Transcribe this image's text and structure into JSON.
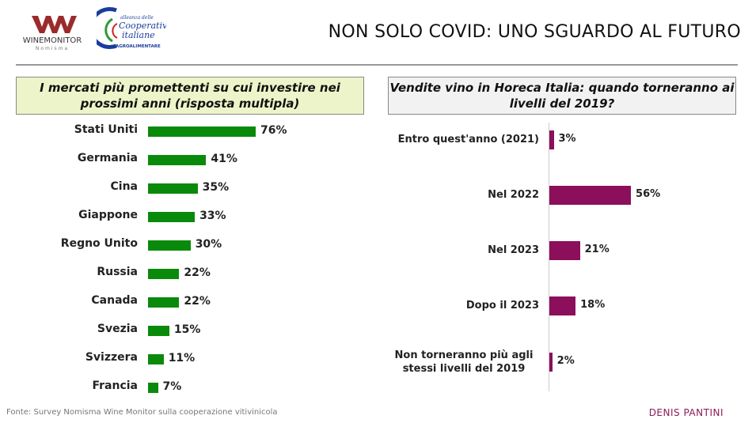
{
  "header": {
    "title": "NON SOLO COVID: UNO SGUARDO AL FUTURO",
    "logos": [
      "WINEMONITOR Nomisma",
      "alleanza delle Cooperative italiane AGROALIMENTARE"
    ]
  },
  "footer": {
    "source": "Fonte: Survey Nomisma Wine Monitor sulla cooperazione vitivinicola",
    "author": "DENIS PANTINI"
  },
  "chart_data": [
    {
      "type": "bar",
      "orientation": "horizontal",
      "title": "I mercati più promettenti su cui investire nei prossimi anni (risposta multipla)",
      "categories": [
        "Stati Uniti",
        "Germania",
        "Cina",
        "Giappone",
        "Regno Unito",
        "Russia",
        "Canada",
        "Svezia",
        "Svizzera",
        "Francia"
      ],
      "values": [
        76,
        41,
        35,
        33,
        30,
        22,
        22,
        15,
        11,
        7
      ],
      "labels": [
        "76%",
        "41%",
        "35%",
        "33%",
        "30%",
        "22%",
        "22%",
        "15%",
        "11%",
        "7%"
      ],
      "color": "#0a8a0a",
      "unit": "%"
    },
    {
      "type": "bar",
      "orientation": "horizontal",
      "title": "Vendite vino in Horeca Italia: quando torneranno ai livelli del 2019?",
      "categories": [
        "Entro quest'anno (2021)",
        "Nel 2022",
        "Nel 2023",
        "Dopo il 2023",
        "Non torneranno più agli stessi livelli del 2019"
      ],
      "values": [
        3,
        56,
        21,
        18,
        2
      ],
      "labels": [
        "3%",
        "56%",
        "21%",
        "18%",
        "2%"
      ],
      "color": "#8b0f5a",
      "unit": "%"
    }
  ]
}
